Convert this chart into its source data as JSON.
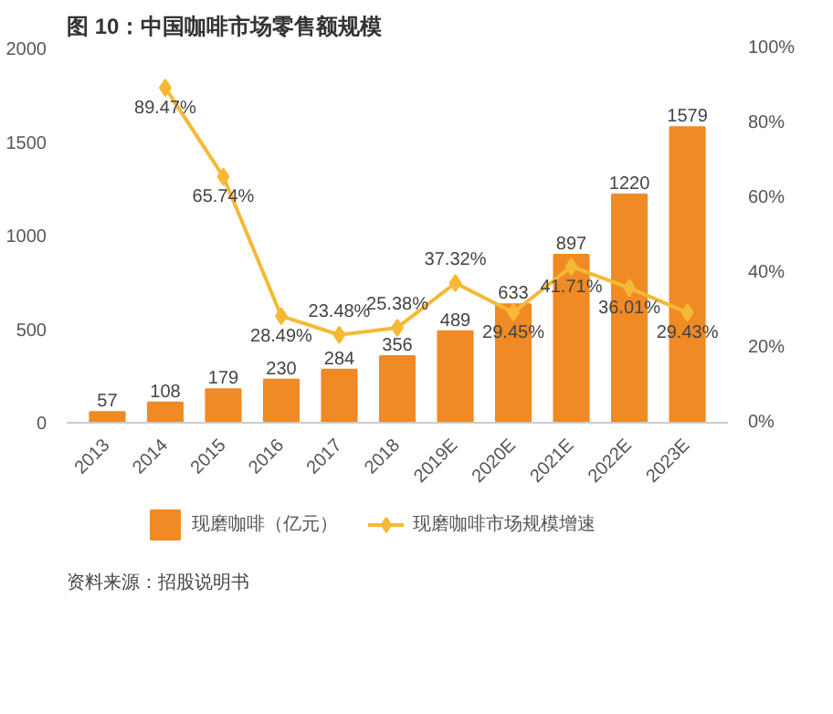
{
  "chart_data": {
    "type": "bar",
    "title": "图 10：中国咖啡市场零售额规模",
    "categories": [
      "2013",
      "2014",
      "2015",
      "2016",
      "2017",
      "2018",
      "2019E",
      "2020E",
      "2021E",
      "2022E",
      "2023E"
    ],
    "series": [
      {
        "name": "现磨咖啡（亿元）",
        "color": "#f08a24",
        "values": [
          57,
          108,
          179,
          230,
          284,
          356,
          489,
          633,
          897,
          1220,
          1579
        ],
        "value_labels": [
          "57",
          "108",
          "179",
          "230",
          "284",
          "356",
          "489",
          "633",
          "897",
          "1220",
          "1579"
        ]
      },
      {
        "name": "现磨咖啡市场规模增速",
        "type": "line",
        "axis": "y2",
        "color": "#f5b935",
        "values": [
          null,
          89.47,
          65.74,
          28.49,
          23.48,
          25.38,
          37.32,
          29.45,
          41.71,
          36.01,
          29.43
        ],
        "value_labels": [
          null,
          "89.47%",
          "65.74%",
          "28.49%",
          "23.48%",
          "25.38%",
          "37.32%",
          "29.45%",
          "41.71%",
          "36.01%",
          "29.43%"
        ]
      }
    ],
    "ylim": [
      0,
      2000
    ],
    "yticks": [
      0,
      500,
      1000,
      1500,
      2000
    ],
    "y2lim": [
      0,
      100
    ],
    "y2ticks": [
      {
        "value": 0,
        "label": "0%"
      },
      {
        "value": 20,
        "label": "20%"
      },
      {
        "value": 40,
        "label": "40%"
      },
      {
        "value": 60,
        "label": "60%"
      },
      {
        "value": 80,
        "label": "80%"
      },
      {
        "value": 100,
        "label": "100%"
      }
    ],
    "marker": "diamond",
    "legend": "bottom",
    "grid": false,
    "annotations": [
      "资料来源：招股说明书"
    ]
  }
}
